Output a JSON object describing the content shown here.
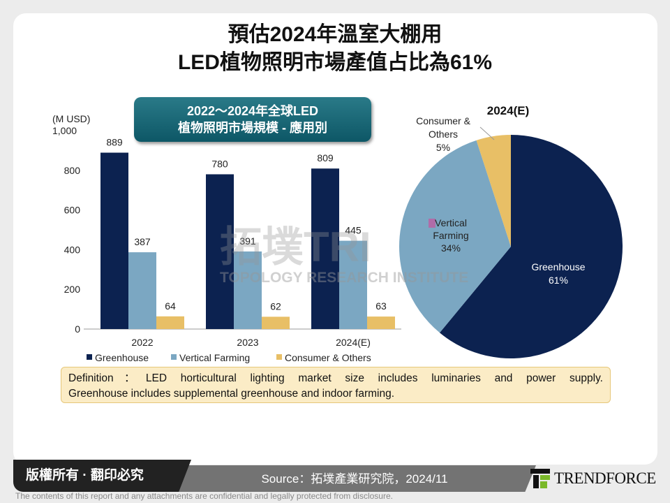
{
  "title": [
    "預估2024年溫室大棚用",
    "LED植物照明市場產值占比為61%"
  ],
  "subtitle": [
    "2022～2024年全球LED",
    "植物照明市場規模 - 應用別"
  ],
  "watermark": {
    "cn": "拓墣TRI",
    "en": "TOPOLOGY RESEARCH INSTITUTE"
  },
  "colors": {
    "Greenhouse": "#0c2250",
    "Vertical Farming": "#7ba7c2",
    "Consumer & Others": "#e8bf66"
  },
  "chart_data": [
    {
      "type": "bar",
      "ylabel": "(M USD)",
      "ylim": [
        0,
        1000
      ],
      "yticks": [
        "0",
        "200",
        "400",
        "600",
        "800",
        "1,000"
      ],
      "categories": [
        "2022",
        "2023",
        "2024(E)"
      ],
      "series": [
        {
          "name": "Greenhouse",
          "values": [
            889,
            780,
            809
          ]
        },
        {
          "name": "Vertical Farming",
          "values": [
            387,
            391,
            445
          ]
        },
        {
          "name": "Consumer & Others",
          "values": [
            64,
            62,
            63
          ]
        }
      ],
      "legend": "bottom",
      "grid": false
    },
    {
      "type": "pie",
      "title": "2024(E)",
      "slices": [
        {
          "label": "Greenhouse",
          "value": 61,
          "text": "61%"
        },
        {
          "label": "Vertical Farming",
          "value": 34,
          "text": "34%"
        },
        {
          "label": "Consumer & Others",
          "value": 5,
          "text": "5%"
        }
      ]
    }
  ],
  "pie_labels": {
    "greenhouse": [
      "Greenhouse",
      "61%"
    ],
    "vertical": [
      "Vertical",
      "Farming",
      "34%"
    ],
    "consumer": [
      "Consumer &",
      "Others",
      "5%"
    ]
  },
  "definition": [
    "Definition：LED horticultural lighting market size includes luminaries and power supply.",
    "Greenhouse includes supplemental greenhouse and indoor farming."
  ],
  "footer": {
    "copyright": "版權所有 · 翻印必究",
    "source": "Source：拓墣產業研究院，2024/11",
    "logo": "TRENDFORCE",
    "disclaimer": "The contents of this report and any attachments are confidential and legally protected from disclosure."
  }
}
